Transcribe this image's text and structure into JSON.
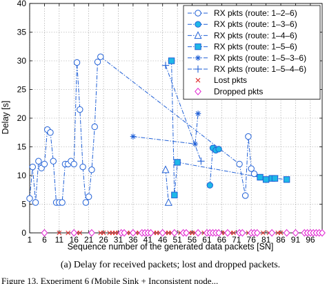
{
  "chart_data": {
    "type": "line",
    "xlabel": "Sequence number of the generated data packets [SN]",
    "ylabel": "Delay [s]",
    "xlim": [
      1,
      100
    ],
    "ylim": [
      0,
      40
    ],
    "grid": true,
    "legend_position": "top-right",
    "xtick_labels": [
      "1",
      "6",
      "11",
      "16",
      "21",
      "26",
      "31",
      "36",
      "41",
      "46",
      "51",
      "56",
      "61",
      "66",
      "71",
      "76",
      "81",
      "86",
      "91",
      "96"
    ],
    "ytick_labels": [
      "0",
      "5",
      "10",
      "15",
      "20",
      "25",
      "30",
      "35",
      "40"
    ],
    "series": [
      {
        "name": "RX pkts (route: 1–2–6)",
        "color": "#1f5fd6",
        "marker": "circle-open",
        "line": "dashdot",
        "points": [
          [
            1,
            6.0
          ],
          [
            2,
            11.5
          ],
          [
            3,
            5.3
          ],
          [
            4,
            12.5
          ],
          [
            5,
            11.3
          ],
          [
            6,
            12.0
          ],
          [
            7,
            18.0
          ],
          [
            8,
            17.5
          ],
          [
            9,
            12.5
          ],
          [
            10,
            5.3
          ],
          [
            11,
            5.3
          ],
          [
            12,
            5.3
          ],
          [
            13,
            12.0
          ],
          [
            14,
            12.0
          ],
          [
            15,
            12.5
          ],
          [
            16,
            12.0
          ],
          [
            17,
            29.7
          ],
          [
            18,
            21.5
          ],
          [
            19,
            11.5
          ],
          [
            20,
            5.3
          ],
          [
            21,
            6.3
          ],
          [
            22,
            11.0
          ],
          [
            23,
            18.5
          ],
          [
            24,
            29.8
          ],
          [
            25,
            30.7
          ],
          [
            72,
            12.0
          ],
          [
            74,
            6.5
          ],
          [
            75,
            16.8
          ],
          [
            76,
            11.2
          ],
          [
            77,
            10.3
          ]
        ]
      },
      {
        "name": "RX pkts (route: 1–3–6)",
        "color": "#1f5fd6",
        "marker": "circle-filled",
        "line": "dashdot",
        "points": [
          [
            62,
            8.3
          ],
          [
            63,
            14.8
          ],
          [
            64,
            14.4
          ],
          [
            65,
            14.6
          ]
        ]
      },
      {
        "name": "RX pkts (route: 1–4–6)",
        "color": "#1f5fd6",
        "marker": "triangle-open",
        "line": "dashdot",
        "points": [
          [
            47,
            11.0
          ],
          [
            48,
            5.3
          ]
        ]
      },
      {
        "name": "RX pkts (route: 1–5–6)",
        "color": "#1f5fd6",
        "marker": "square-filled",
        "line": "dashdot",
        "points": [
          [
            49,
            30.0
          ],
          [
            50,
            6.6
          ],
          [
            51,
            12.3
          ],
          [
            79,
            9.7
          ],
          [
            81,
            9.3
          ],
          [
            83,
            9.5
          ],
          [
            84,
            9.5
          ],
          [
            88,
            9.3
          ]
        ]
      },
      {
        "name": "RX pkts (route: 1–5–3–6)",
        "color": "#1f5fd6",
        "marker": "star",
        "line": "dashdot",
        "points": [
          [
            36,
            16.8
          ],
          [
            57,
            15.5
          ],
          [
            58,
            20.8
          ]
        ]
      },
      {
        "name": "RX pkts (route: 1–5–4–6)",
        "color": "#1f5fd6",
        "marker": "plus",
        "line": "dashdot",
        "points": [
          [
            47,
            29.2
          ],
          [
            59,
            12.5
          ]
        ]
      },
      {
        "name": "Lost pkts",
        "color": "#e03030",
        "marker": "x",
        "line": "none",
        "points": [
          [
            11,
            0
          ],
          [
            14,
            0
          ],
          [
            17,
            0
          ],
          [
            18,
            0
          ],
          [
            25,
            0
          ],
          [
            26,
            0
          ],
          [
            28,
            0
          ],
          [
            29,
            0
          ],
          [
            30,
            0
          ],
          [
            31,
            0
          ],
          [
            34,
            0
          ],
          [
            35,
            0
          ],
          [
            37,
            0
          ],
          [
            38,
            0
          ],
          [
            43,
            0
          ],
          [
            44,
            0
          ],
          [
            45,
            0
          ],
          [
            47,
            0
          ],
          [
            48,
            0
          ],
          [
            49,
            0
          ],
          [
            52,
            0
          ],
          [
            55,
            0
          ],
          [
            56,
            0
          ],
          [
            57,
            0
          ],
          [
            60,
            0
          ],
          [
            66,
            0
          ],
          [
            67,
            0
          ],
          [
            69,
            0
          ],
          [
            70,
            0
          ],
          [
            75,
            0
          ],
          [
            80,
            0
          ],
          [
            82,
            0
          ],
          [
            85,
            0
          ],
          [
            86,
            0
          ]
        ]
      },
      {
        "name": "Dropped pkts",
        "color": "#e01fd0",
        "marker": "diamond-open",
        "line": "none",
        "points": [
          [
            6,
            0
          ],
          [
            16,
            0
          ],
          [
            22,
            0
          ],
          [
            32,
            0
          ],
          [
            33,
            0
          ],
          [
            36,
            0
          ],
          [
            39,
            0
          ],
          [
            40,
            0
          ],
          [
            41,
            0
          ],
          [
            42,
            0
          ],
          [
            46,
            0
          ],
          [
            50,
            0
          ],
          [
            53,
            0
          ],
          [
            54,
            0
          ],
          [
            58,
            0
          ],
          [
            61,
            0
          ],
          [
            62,
            0
          ],
          [
            63,
            0
          ],
          [
            64,
            0
          ],
          [
            65,
            0
          ],
          [
            68,
            0
          ],
          [
            72,
            0
          ],
          [
            73,
            0
          ],
          [
            76,
            0
          ],
          [
            77,
            0
          ],
          [
            78,
            0
          ],
          [
            83,
            0
          ],
          [
            88,
            0
          ],
          [
            91,
            0
          ],
          [
            94,
            0
          ],
          [
            95,
            0
          ],
          [
            96,
            0
          ],
          [
            97,
            0
          ],
          [
            98,
            0
          ],
          [
            99,
            0
          ],
          [
            100,
            0
          ]
        ]
      }
    ]
  },
  "caption": "(a) Delay for received packets; lost and dropped packets.",
  "cut_caption": "Figure 13. Experiment 6 (Mobile Sink + Inconsistent node..."
}
